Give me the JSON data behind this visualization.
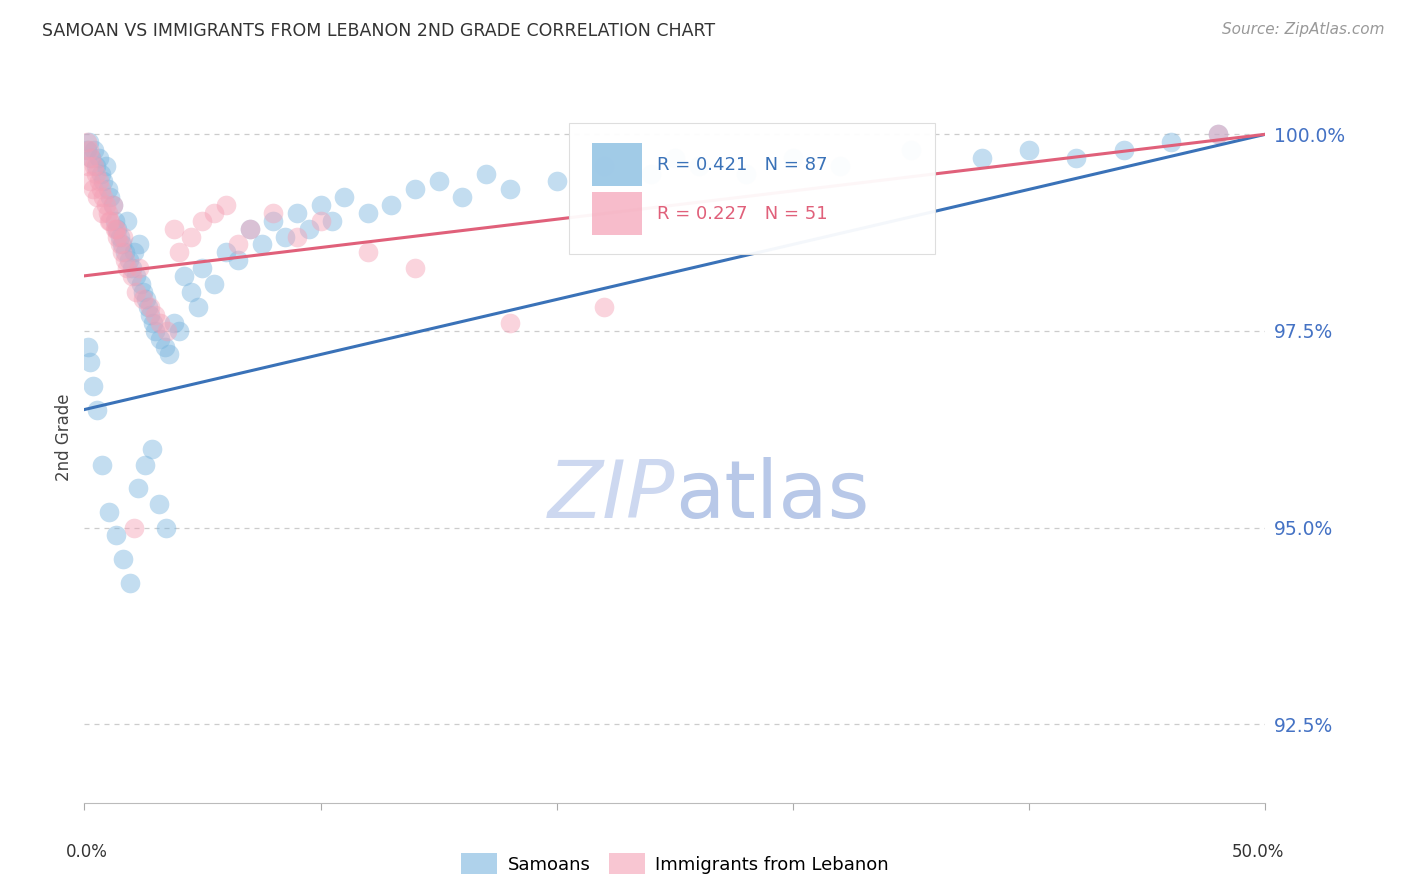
{
  "title": "SAMOAN VS IMMIGRANTS FROM LEBANON 2ND GRADE CORRELATION CHART",
  "source": "Source: ZipAtlas.com",
  "ylabel": "2nd Grade",
  "right_yticks": [
    100.0,
    97.5,
    95.0,
    92.5
  ],
  "right_ytick_labels": [
    "100.0%",
    "97.5%",
    "95.0%",
    "92.5%"
  ],
  "legend_blue_text": "R = 0.421   N = 87",
  "legend_pink_text": "R = 0.227   N = 51",
  "legend_label_blue": "Samoans",
  "legend_label_pink": "Immigrants from Lebanon",
  "blue_color": "#7ab5de",
  "pink_color": "#f4a0b5",
  "blue_line_color": "#3a72b8",
  "pink_line_color": "#e0607a",
  "title_color": "#333333",
  "source_color": "#999999",
  "axis_label_color": "#444444",
  "right_tick_color": "#4472c4",
  "grid_color": "#cccccc",
  "watermark_zip_color": "#d0dff5",
  "watermark_atlas_color": "#c0cce8",
  "blue_scatter_x": [
    0.1,
    0.2,
    0.3,
    0.4,
    0.5,
    0.6,
    0.7,
    0.8,
    0.9,
    1.0,
    1.1,
    1.2,
    1.3,
    1.4,
    1.5,
    1.6,
    1.7,
    1.8,
    1.9,
    2.0,
    2.1,
    2.2,
    2.3,
    2.4,
    2.5,
    2.6,
    2.7,
    2.8,
    2.9,
    3.0,
    3.2,
    3.4,
    3.6,
    3.8,
    4.0,
    4.2,
    4.5,
    4.8,
    5.0,
    5.5,
    6.0,
    6.5,
    7.0,
    7.5,
    8.0,
    8.5,
    9.0,
    9.5,
    10.0,
    10.5,
    11.0,
    12.0,
    13.0,
    14.0,
    15.0,
    16.0,
    17.0,
    18.0,
    20.0,
    22.0,
    24.0,
    25.0,
    26.0,
    28.0,
    30.0,
    32.0,
    35.0,
    38.0,
    40.0,
    42.0,
    44.0,
    46.0,
    48.0,
    0.15,
    0.25,
    0.35,
    0.55,
    0.75,
    1.05,
    1.35,
    1.65,
    1.95,
    2.25,
    2.55,
    2.85,
    3.15,
    3.45
  ],
  "blue_scatter_y": [
    99.8,
    99.9,
    99.7,
    99.8,
    99.6,
    99.7,
    99.5,
    99.4,
    99.6,
    99.3,
    99.2,
    99.1,
    98.9,
    98.8,
    98.7,
    98.6,
    98.5,
    98.9,
    98.4,
    98.3,
    98.5,
    98.2,
    98.6,
    98.1,
    98.0,
    97.9,
    97.8,
    97.7,
    97.6,
    97.5,
    97.4,
    97.3,
    97.2,
    97.6,
    97.5,
    98.2,
    98.0,
    97.8,
    98.3,
    98.1,
    98.5,
    98.4,
    98.8,
    98.6,
    98.9,
    98.7,
    99.0,
    98.8,
    99.1,
    98.9,
    99.2,
    99.0,
    99.1,
    99.3,
    99.4,
    99.2,
    99.5,
    99.3,
    99.4,
    99.6,
    99.5,
    99.7,
    99.6,
    99.5,
    99.7,
    99.6,
    99.8,
    99.7,
    99.8,
    99.7,
    99.8,
    99.9,
    100.0,
    97.3,
    97.1,
    96.8,
    96.5,
    95.8,
    95.2,
    94.9,
    94.6,
    94.3,
    95.5,
    95.8,
    96.0,
    95.3,
    95.0
  ],
  "pink_scatter_x": [
    0.1,
    0.2,
    0.3,
    0.4,
    0.5,
    0.6,
    0.7,
    0.8,
    0.9,
    1.0,
    1.1,
    1.2,
    1.3,
    1.4,
    1.5,
    1.6,
    1.7,
    1.8,
    2.0,
    2.2,
    2.5,
    2.8,
    3.0,
    3.2,
    3.5,
    3.8,
    4.0,
    4.5,
    5.0,
    5.5,
    6.0,
    6.5,
    7.0,
    8.0,
    9.0,
    10.0,
    12.0,
    14.0,
    18.0,
    22.0,
    0.15,
    0.25,
    0.35,
    0.55,
    0.75,
    1.05,
    1.35,
    1.65,
    2.3,
    48.0,
    2.1
  ],
  "pink_scatter_y": [
    99.9,
    99.8,
    99.7,
    99.6,
    99.5,
    99.4,
    99.3,
    99.2,
    99.1,
    99.0,
    98.9,
    99.1,
    98.8,
    98.7,
    98.6,
    98.5,
    98.4,
    98.3,
    98.2,
    98.0,
    97.9,
    97.8,
    97.7,
    97.6,
    97.5,
    98.8,
    98.5,
    98.7,
    98.9,
    99.0,
    99.1,
    98.6,
    98.8,
    99.0,
    98.7,
    98.9,
    98.5,
    98.3,
    97.6,
    97.8,
    99.6,
    99.4,
    99.3,
    99.2,
    99.0,
    98.9,
    98.8,
    98.7,
    98.3,
    100.0,
    95.0
  ],
  "xlim": [
    0.0,
    50.0
  ],
  "ylim": [
    91.5,
    100.8
  ],
  "blue_trend_x0": 0.0,
  "blue_trend_y0": 96.5,
  "blue_trend_x1": 50.0,
  "blue_trend_y1": 100.0,
  "pink_trend_x0": 0.0,
  "pink_trend_y0": 98.2,
  "pink_trend_x1": 50.0,
  "pink_trend_y1": 100.0
}
